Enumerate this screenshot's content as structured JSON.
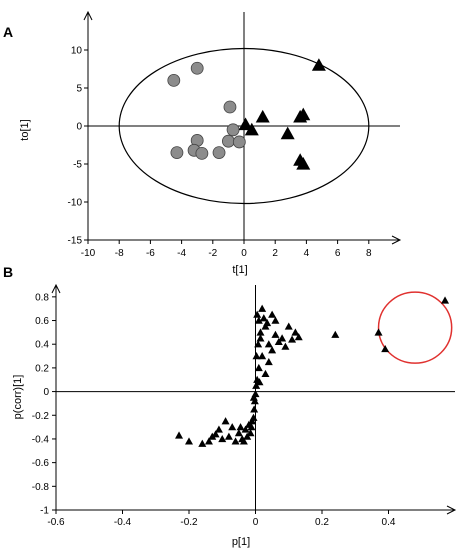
{
  "chart_data": [
    {
      "panel": "A",
      "type": "scatter",
      "xlabel": "t[1]",
      "ylabel": "to[1]",
      "xlim": [
        -10,
        10
      ],
      "ylim": [
        -15,
        15
      ],
      "x_ticks": [
        -10,
        -8,
        -6,
        -4,
        -2,
        0,
        2,
        4,
        6,
        8
      ],
      "y_ticks": [
        -15,
        -10,
        -5,
        0,
        5,
        10
      ],
      "grid": false,
      "ellipse": {
        "center": [
          0,
          0
        ],
        "radius_x": 8,
        "radius_y": 10.2
      },
      "series": [
        {
          "marker": "circle",
          "color": "#8c8c8c",
          "points": [
            [
              -4.5,
              6.0
            ],
            [
              -3.0,
              7.6
            ],
            [
              -0.9,
              2.5
            ],
            [
              -0.7,
              -0.5
            ],
            [
              -1.6,
              -3.5
            ],
            [
              -1.0,
              -2.0
            ],
            [
              -0.3,
              -2.1
            ],
            [
              -3.0,
              -1.9
            ],
            [
              -3.2,
              -3.2
            ],
            [
              -4.3,
              -3.5
            ],
            [
              -2.7,
              -3.6
            ]
          ]
        },
        {
          "marker": "triangle",
          "color": "#000000",
          "points": [
            [
              0.1,
              0.2
            ],
            [
              0.5,
              -0.5
            ],
            [
              1.2,
              1.2
            ],
            [
              2.8,
              -1.0
            ],
            [
              3.6,
              1.2
            ],
            [
              3.8,
              1.5
            ],
            [
              3.6,
              -4.5
            ],
            [
              3.8,
              -5.0
            ],
            [
              4.8,
              8.0
            ]
          ]
        }
      ]
    },
    {
      "panel": "B",
      "type": "scatter",
      "xlabel": "p[1]",
      "ylabel": "p(corr)[1]",
      "xlim": [
        -0.6,
        0.6
      ],
      "ylim": [
        -1,
        0.9
      ],
      "x_ticks": [
        -0.6,
        -0.4,
        -0.2,
        0,
        0.2,
        0.4
      ],
      "y_ticks": [
        -1,
        -0.8,
        -0.6,
        -0.4,
        -0.2,
        0,
        0.2,
        0.4,
        0.6,
        0.8
      ],
      "grid": false,
      "highlight": {
        "shape": "ellipse",
        "color": "#e0312f",
        "center": [
          0.48,
          0.54
        ],
        "radius_x": 0.11,
        "radius_y": 0.3
      },
      "series": [
        {
          "marker": "triangle",
          "color": "#000000",
          "points": [
            [
              0.57,
              0.77
            ],
            [
              0.37,
              0.5
            ],
            [
              0.39,
              0.36
            ],
            [
              0.24,
              0.48
            ],
            [
              0.12,
              0.5
            ],
            [
              0.1,
              0.55
            ],
            [
              0.08,
              0.45
            ],
            [
              0.06,
              0.6
            ],
            [
              0.05,
              0.65
            ],
            [
              0.04,
              0.4
            ],
            [
              0.03,
              0.55
            ],
            [
              0.02,
              0.7
            ],
            [
              0.02,
              0.3
            ],
            [
              0.015,
              0.5
            ],
            [
              0.01,
              0.6
            ],
            [
              0.01,
              0.2
            ],
            [
              0.008,
              0.4
            ],
            [
              0.005,
              0.1
            ],
            [
              0.005,
              0.65
            ],
            [
              0.003,
              0.3
            ],
            [
              0.002,
              0.05
            ],
            [
              0.0,
              -0.02
            ],
            [
              -0.002,
              -0.08
            ],
            [
              -0.004,
              -0.15
            ],
            [
              -0.006,
              -0.22
            ],
            [
              -0.01,
              -0.25
            ],
            [
              -0.012,
              -0.3
            ],
            [
              -0.015,
              -0.35
            ],
            [
              -0.02,
              -0.28
            ],
            [
              -0.025,
              -0.38
            ],
            [
              -0.03,
              -0.32
            ],
            [
              -0.04,
              -0.4
            ],
            [
              -0.05,
              -0.35
            ],
            [
              -0.06,
              -0.42
            ],
            [
              -0.08,
              -0.38
            ],
            [
              -0.1,
              -0.4
            ],
            [
              -0.12,
              -0.36
            ],
            [
              -0.14,
              -0.42
            ],
            [
              -0.16,
              -0.44
            ],
            [
              -0.2,
              -0.42
            ],
            [
              -0.23,
              -0.37
            ],
            [
              -0.07,
              -0.3
            ],
            [
              -0.09,
              -0.25
            ],
            [
              0.03,
              0.15
            ],
            [
              0.04,
              0.25
            ],
            [
              0.05,
              0.35
            ],
            [
              0.07,
              0.42
            ],
            [
              0.09,
              0.38
            ],
            [
              0.015,
              0.45
            ],
            [
              0.025,
              0.62
            ],
            [
              0.035,
              0.58
            ],
            [
              -0.035,
              -0.42
            ],
            [
              -0.045,
              -0.3
            ],
            [
              0.012,
              0.08
            ],
            [
              -0.005,
              -0.05
            ],
            [
              0.06,
              0.48
            ],
            [
              0.11,
              0.44
            ],
            [
              0.13,
              0.46
            ],
            [
              -0.11,
              -0.32
            ],
            [
              -0.13,
              -0.38
            ]
          ]
        }
      ]
    }
  ]
}
